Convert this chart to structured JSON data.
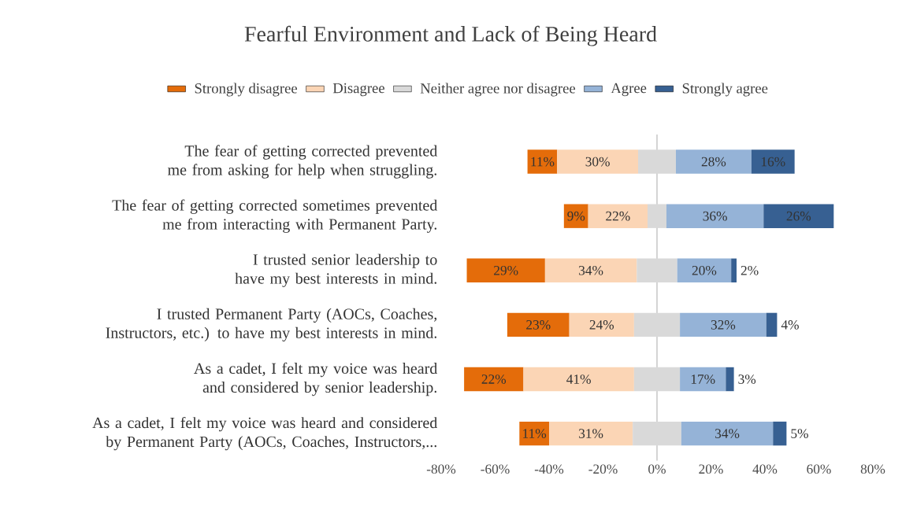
{
  "chart_data": {
    "type": "bar",
    "orientation": "horizontal",
    "title": "Fearful Environment and Lack of Being Heard",
    "categories": [
      "The fear of getting corrected prevented me from asking for help when struggling.",
      "The fear of getting corrected sometimes prevented me from interacting with Permanent Party.",
      "I trusted  senior leadership to have my best interests in mind.",
      "I trusted Permanent Party  (AOCs, Coaches, Instructors, etc.) to have my best interests in mind.",
      "As a cadet, I felt my voice was heard and considered by senior leadership.",
      "As a cadet, I  felt my voice was heard and considered by Permanent Party (AOCs, Coaches, Instructors,..."
    ],
    "xlim": [
      -80,
      80
    ],
    "xticks": [
      {
        "value": -80,
        "label": "-80%"
      },
      {
        "value": -60,
        "label": "-60%"
      },
      {
        "value": -40,
        "label": "-40%"
      },
      {
        "value": -20,
        "label": "-20%"
      },
      {
        "value": 0,
        "label": "0%"
      },
      {
        "value": 20,
        "label": "20%"
      },
      {
        "value": 40,
        "label": "40%"
      },
      {
        "value": 60,
        "label": "60%"
      },
      {
        "value": 80,
        "label": "80%"
      }
    ],
    "legend": "top",
    "series": [
      {
        "name": "Strongly disagree",
        "color": "#e46c0a",
        "values": [
          11,
          9,
          29,
          23,
          22,
          11
        ],
        "base": [
          -48,
          -34.5,
          -70.5,
          -55.5,
          -71.5,
          -51
        ],
        "value_labels": [
          "11%",
          "9%",
          "29%",
          "23%",
          "22%",
          "11%"
        ]
      },
      {
        "name": "Disagree",
        "color": "#fbd5b5",
        "values": [
          30,
          22,
          34,
          24,
          41,
          31
        ],
        "base": [
          -37,
          -25.5,
          -41.5,
          -32.5,
          -49.5,
          -40
        ],
        "value_labels": [
          "30%",
          "22%",
          "34%",
          "24%",
          "41%",
          "31%"
        ]
      },
      {
        "name": "Neither agree nor disagree",
        "color": "#d9d9d9",
        "values": [
          14,
          7,
          15,
          17,
          17,
          18
        ],
        "base": [
          -7,
          -3.5,
          -7.5,
          -8.5,
          -8.5,
          -9
        ]
      },
      {
        "name": "Agree",
        "color": "#95b3d7",
        "values": [
          28,
          36,
          20,
          32,
          17,
          34
        ],
        "base": [
          7,
          3.5,
          7.5,
          8.5,
          8.5,
          9
        ],
        "value_labels": [
          "28%",
          "36%",
          "20%",
          "32%",
          "17%",
          "34%"
        ]
      },
      {
        "name": "Strongly agree",
        "color": "#376092",
        "values": [
          16,
          26,
          2,
          4,
          3,
          5
        ],
        "base": [
          35,
          39.5,
          27.5,
          40.5,
          25.5,
          43
        ],
        "value_labels": [
          "16%",
          "26%",
          "2%",
          "4%",
          "3%",
          "5%"
        ]
      }
    ]
  }
}
